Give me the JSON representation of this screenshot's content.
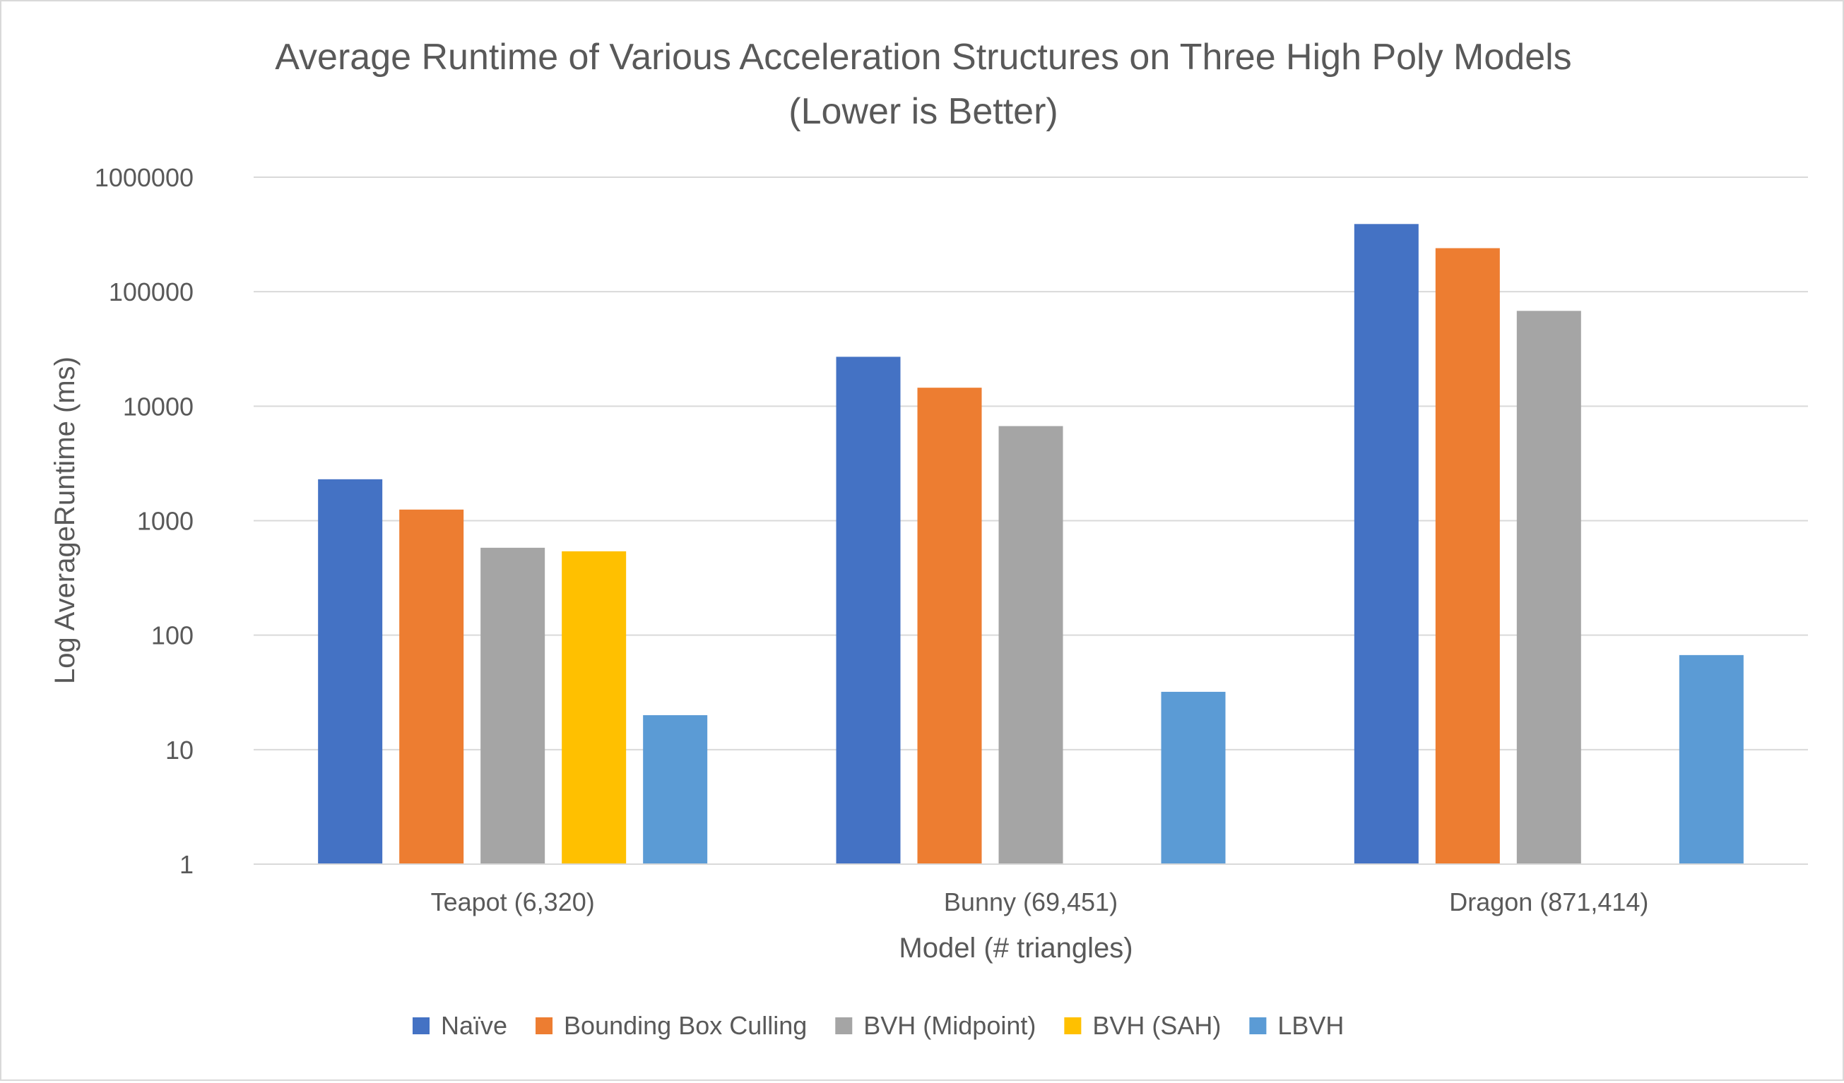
{
  "chart_data": {
    "type": "bar",
    "title": "Average Runtime of Various Acceleration Structures on Three High Poly Models",
    "subtitle": "(Lower is Better)",
    "xlabel": "Model (# triangles)",
    "ylabel": "Log AverageRuntime (ms)",
    "y_scale": "log",
    "ylim": [
      1,
      1000000
    ],
    "y_ticks": [
      "1",
      "10",
      "100",
      "1000",
      "10000",
      "100000",
      "1000000"
    ],
    "grid": true,
    "legend_position": "bottom",
    "categories": [
      "Teapot (6,320)",
      "Bunny (69,451)",
      "Dragon (871,414)"
    ],
    "series": [
      {
        "name": "Naïve",
        "color": "#4472C4",
        "values": [
          2300,
          27000,
          390000
        ]
      },
      {
        "name": "Bounding Box Culling",
        "color": "#ED7D31",
        "values": [
          1250,
          14500,
          240000
        ]
      },
      {
        "name": "BVH (Midpoint)",
        "color": "#A5A5A5",
        "values": [
          580,
          6700,
          68000
        ]
      },
      {
        "name": "BVH (SAH)",
        "color": "#FFC000",
        "values": [
          540,
          null,
          null
        ]
      },
      {
        "name": "LBVH",
        "color": "#5B9BD5",
        "values": [
          20,
          32,
          67
        ]
      }
    ]
  }
}
